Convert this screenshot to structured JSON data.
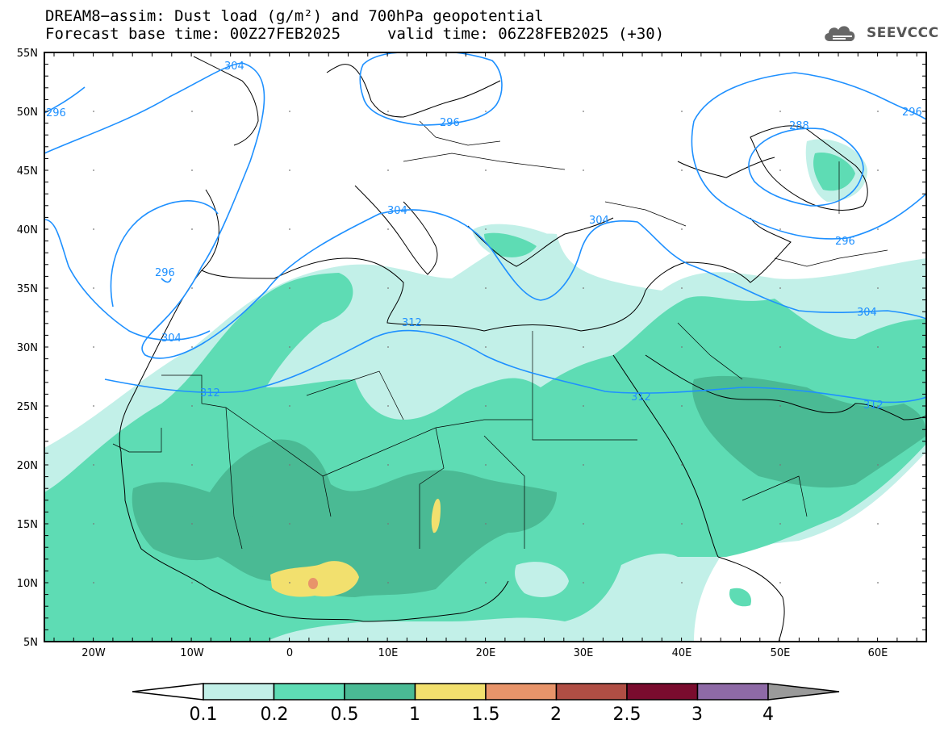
{
  "header": {
    "title": "DREAM8−assim: Dust load (g/m²) and 700hPa geopotential",
    "base_time": "Forecast base time: 00Z27FEB2025",
    "valid_time": "valid time: 06Z28FEB2025 (+30)",
    "logo_text": "SEEVCCC"
  },
  "axes": {
    "lon_ticks": [
      "20W",
      "10W",
      "0",
      "10E",
      "20E",
      "30E",
      "40E",
      "50E",
      "60E"
    ],
    "lat_ticks": [
      "55N",
      "50N",
      "45N",
      "40N",
      "35N",
      "30N",
      "25N",
      "20N",
      "15N",
      "10N",
      "5N"
    ]
  },
  "colorbar": {
    "labels": [
      "0.1",
      "0.2",
      "0.5",
      "1",
      "1.5",
      "2",
      "2.5",
      "3",
      "4"
    ],
    "colors": [
      "#c2f0e8",
      "#5edcb4",
      "#4aba94",
      "#f2e06e",
      "#e8946a",
      "#b04e44",
      "#7a0c2e",
      "#8e6aa6",
      "#9a9a9a"
    ]
  },
  "contours": {
    "color": "#1e90ff",
    "labels": [
      "304",
      "296",
      "296",
      "304",
      "296",
      "304",
      "304",
      "312",
      "312",
      "312",
      "312",
      "288",
      "296",
      "296",
      "304"
    ]
  }
}
